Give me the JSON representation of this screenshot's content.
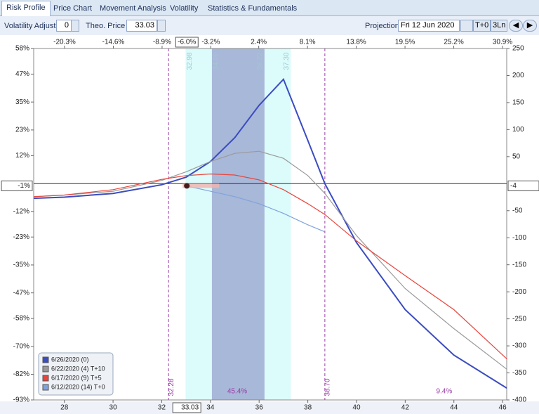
{
  "tabs": [
    "Risk Profile",
    "Price Chart",
    "Movement Analysis",
    "Volatility",
    "Statistics & Fundamentals"
  ],
  "toolbar": {
    "volatility_label": "Volatility Adjust",
    "volatility_value": 0,
    "price_label": "Theo. Price",
    "price_value": 33.03,
    "projection_label": "Projection",
    "projection_value": "Fri 12 Jun 2020",
    "buttons": [
      "T+0",
      "3Ln"
    ]
  },
  "chart_data": {
    "type": "line",
    "x": [
      26.74,
      28,
      30,
      32,
      33,
      34,
      35,
      36,
      37,
      38,
      38.7,
      40,
      42,
      44,
      46.17
    ],
    "series": [
      {
        "name": "6/26/2020 (0)",
        "color": "#3b4cc0",
        "axis": "y2",
        "values": [
          -27,
          -25,
          -18,
          -2,
          12,
          41,
          85,
          145,
          193,
          80,
          0,
          -109,
          -233,
          -317,
          -378
        ]
      },
      {
        "name": "6/22/2020 (4) T+10",
        "color": "#9a9a9a",
        "axis": "y2",
        "values": [
          -24,
          -21,
          -14,
          6,
          22,
          41,
          56,
          60,
          47,
          15,
          -18,
          -96,
          -194,
          -268,
          -343
        ]
      },
      {
        "name": "6/17/2020 (9) T+5",
        "color": "#e8453c",
        "axis": "y2",
        "values": [
          -24,
          -21,
          -11,
          8,
          15,
          18,
          16,
          7,
          -11,
          -37,
          -57,
          -106,
          -170,
          -233,
          -324
        ]
      },
      {
        "name": "6/12/2020 (14) T+0",
        "color": "#7fa3dd",
        "axis": "y2",
        "values": [
          null,
          null,
          null,
          null,
          -4,
          -14,
          -24,
          -37,
          -55,
          -76,
          -89,
          null,
          null,
          null,
          null
        ]
      }
    ],
    "xlim": [
      26.74,
      46.17
    ],
    "xticks": [
      28,
      30,
      32,
      34,
      36,
      38,
      40,
      42,
      44,
      46
    ],
    "x2lim": [
      -23.91,
      31.39
    ],
    "x2ticks": [
      {
        "value": -20.3,
        "label": "-20.3%"
      },
      {
        "value": -14.6,
        "label": "-14.6%"
      },
      {
        "value": -8.9,
        "label": "-8.9%"
      },
      {
        "value": -3.2,
        "label": "-3.2%"
      },
      {
        "value": 2.4,
        "label": "2.4%"
      },
      {
        "value": 8.1,
        "label": "8.1%"
      },
      {
        "value": 13.8,
        "label": "13.8%"
      },
      {
        "value": 19.5,
        "label": "19.5%"
      },
      {
        "value": 25.2,
        "label": "25.2%"
      },
      {
        "value": 30.9,
        "label": "30.9%"
      }
    ],
    "ylim": [
      -93,
      58
    ],
    "yticks": [
      {
        "value": 58,
        "label": "58%"
      },
      {
        "value": 47,
        "label": "47%"
      },
      {
        "value": 35,
        "label": "35%"
      },
      {
        "value": 23,
        "label": "23%"
      },
      {
        "value": 12,
        "label": "12%"
      },
      {
        "value": -12,
        "label": "-12%"
      },
      {
        "value": -23,
        "label": "-23%"
      },
      {
        "value": -35,
        "label": "-35%"
      },
      {
        "value": -47,
        "label": "-47%"
      },
      {
        "value": -58,
        "label": "-58%"
      },
      {
        "value": -70,
        "label": "-70%"
      },
      {
        "value": -82,
        "label": "-82%"
      },
      {
        "value": -93,
        "label": "-93%"
      }
    ],
    "y2lim": [
      -400,
      250
    ],
    "y2ticks": [
      250,
      200,
      150,
      100,
      50,
      -50,
      -100,
      -150,
      -200,
      -250,
      -300,
      -350,
      -400
    ],
    "current": {
      "x": 33.03,
      "x2": {
        "value": -6.0,
        "label": "-6.0%"
      },
      "y": {
        "value": -1,
        "label": "-1%"
      },
      "y2": -4
    },
    "bands": [
      {
        "from": 32.98,
        "to": {
          "value": 37.3,
          "label": "37.30"
        },
        "color": "#dcfbfb"
      },
      {
        "from": 34.06,
        "to": 36.22,
        "color": "#a8b8d8"
      }
    ],
    "breakevens": [
      32.28,
      {
        "value": 38.7,
        "label": "38.70"
      }
    ],
    "annotations": [
      {
        "text": "45.4%",
        "x": 35.1
      },
      {
        "text": "9.4%",
        "x": 43.6
      }
    ]
  }
}
